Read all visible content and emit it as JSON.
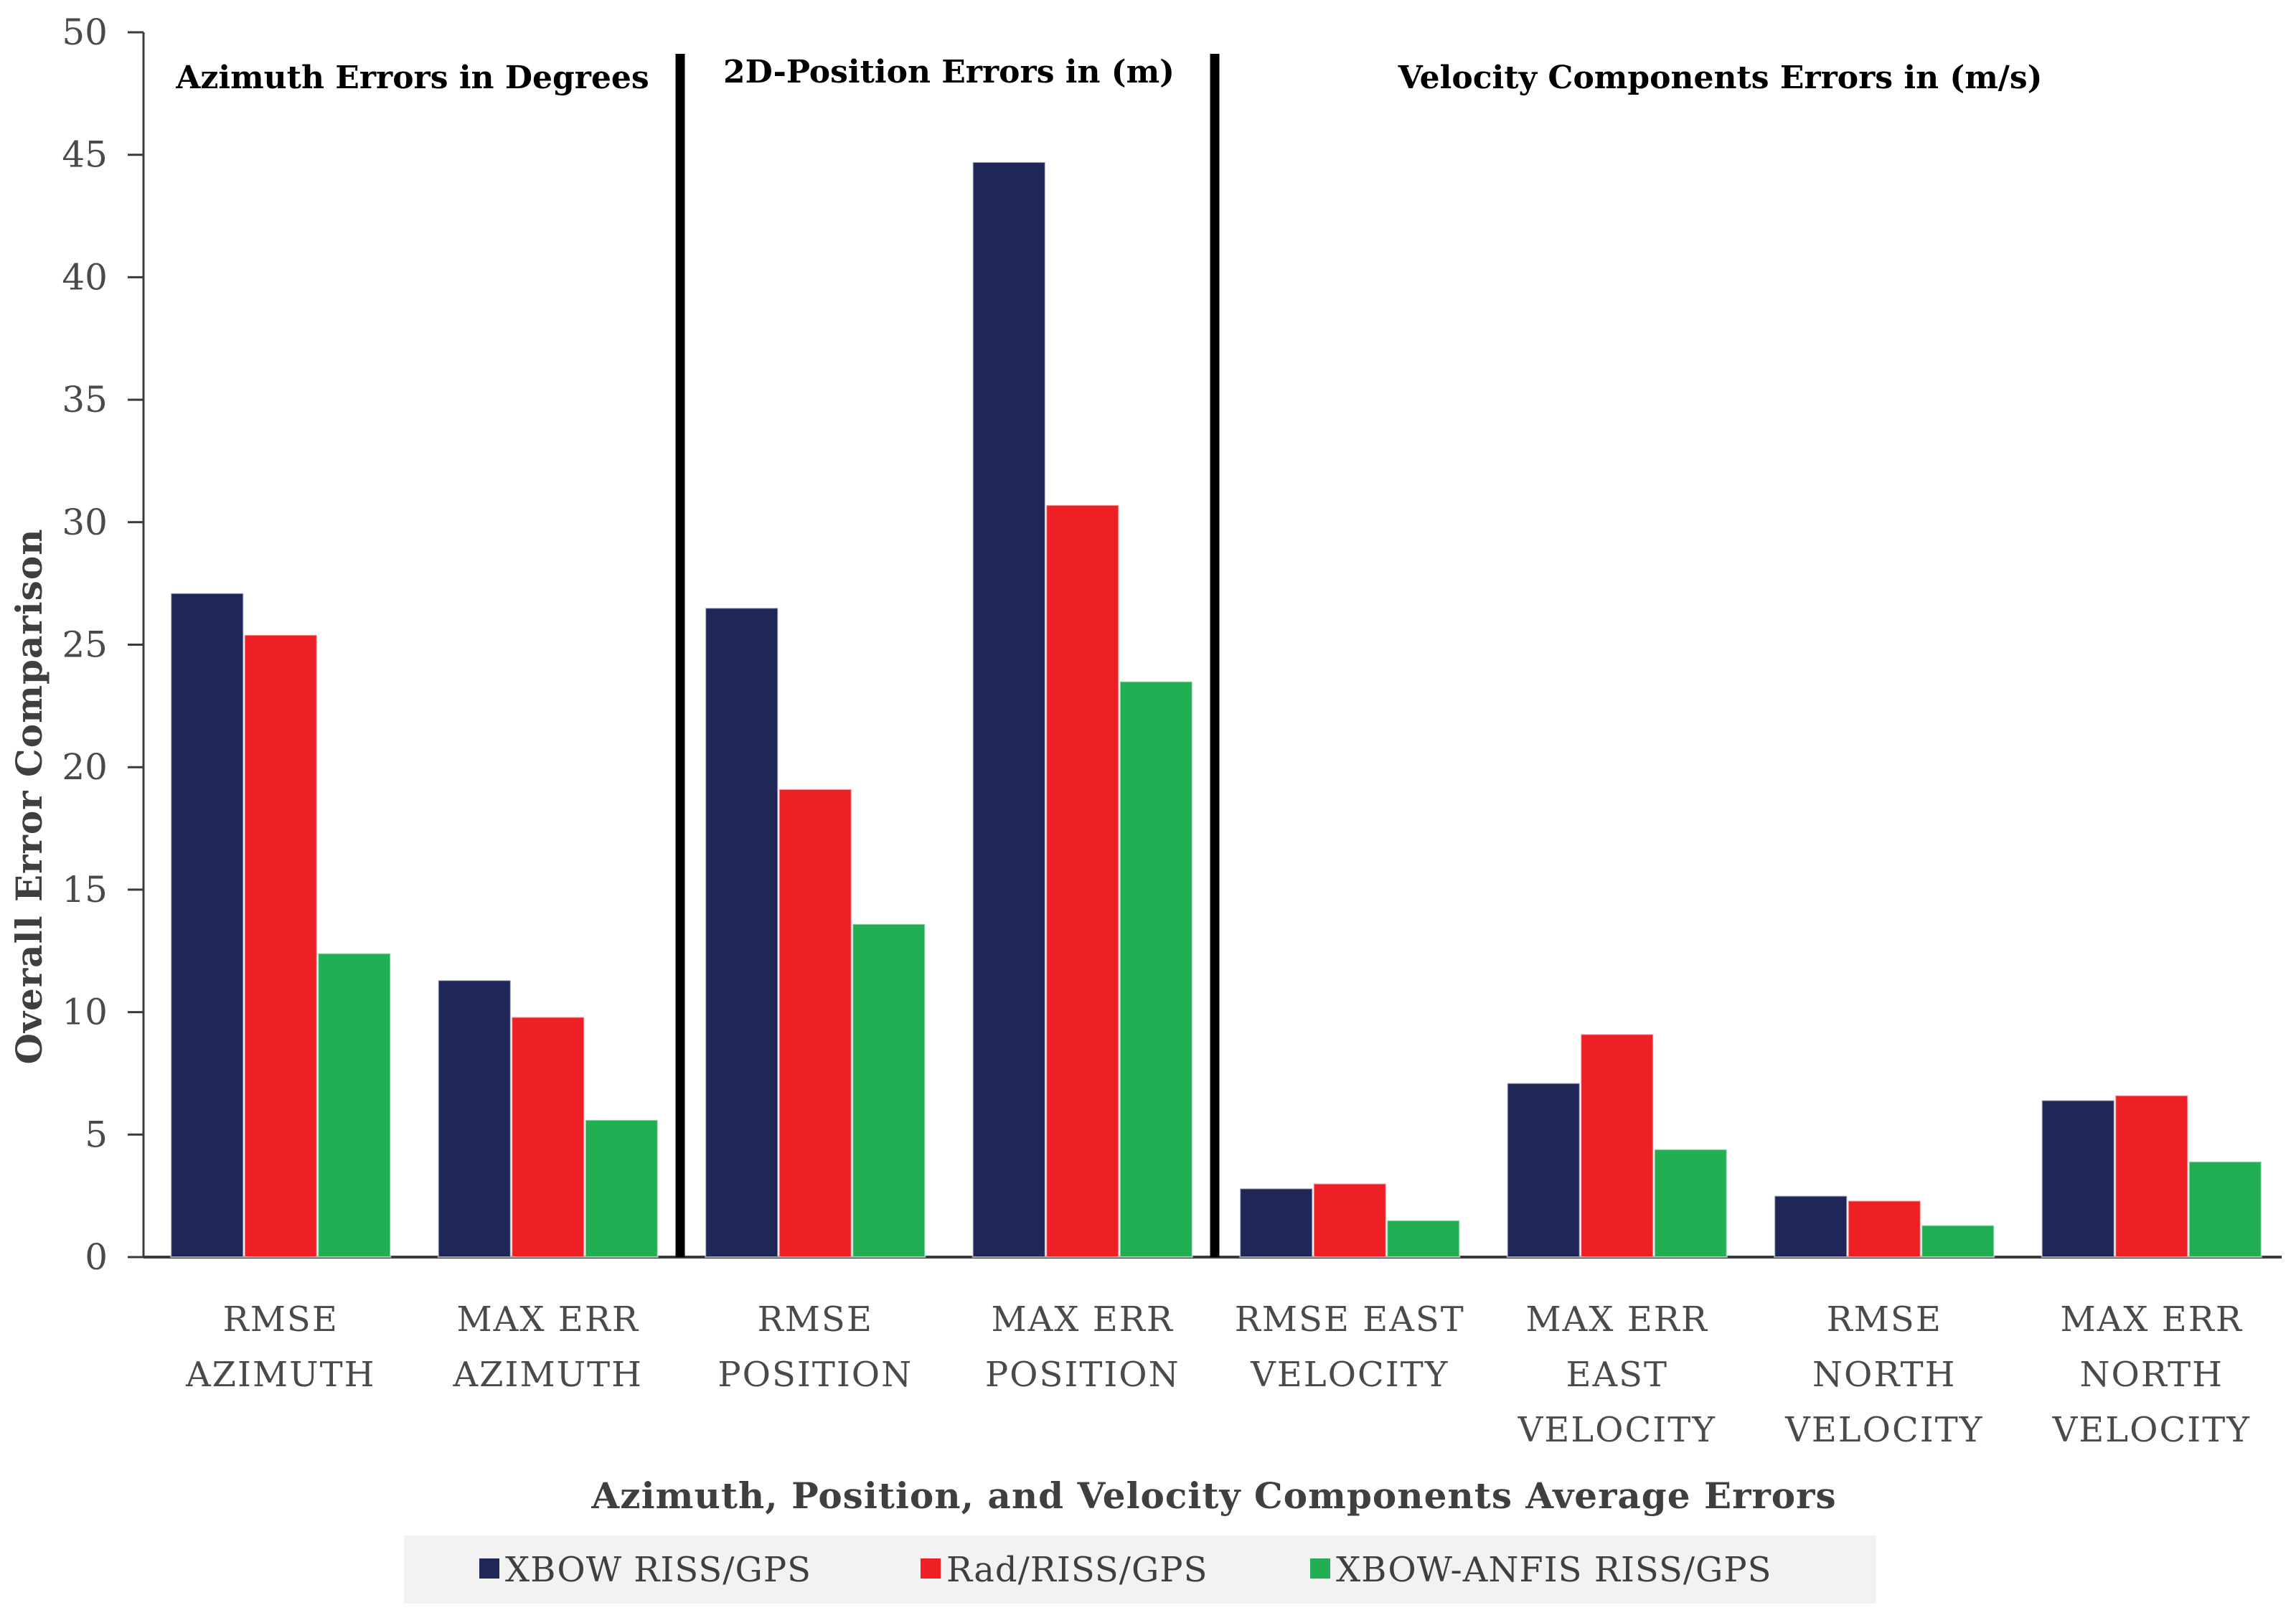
{
  "chart_data": {
    "type": "bar",
    "title": "",
    "xlabel": "Azimuth, Position, and Velocity Components Average Errors",
    "ylabel": "Overall Error Comparison",
    "ylim": [
      0,
      50
    ],
    "yticks": [
      0,
      5,
      10,
      15,
      20,
      25,
      30,
      35,
      40,
      45,
      50
    ],
    "categories": [
      [
        "RMSE",
        "AZIMUTH"
      ],
      [
        "MAX ERR",
        "AZIMUTH"
      ],
      [
        "RMSE",
        "POSITION"
      ],
      [
        "MAX ERR",
        "POSITION"
      ],
      [
        "RMSE EAST",
        "VELOCITY"
      ],
      [
        "MAX ERR",
        "EAST",
        "VELOCITY"
      ],
      [
        "RMSE",
        "NORTH",
        "VELOCITY"
      ],
      [
        "MAX ERR",
        "NORTH",
        "VELOCITY"
      ]
    ],
    "series": [
      {
        "name": "XBOW RISS/GPS",
        "color": "#1f2759",
        "values": [
          27.1,
          11.3,
          26.5,
          44.7,
          2.8,
          7.1,
          2.5,
          6.4
        ]
      },
      {
        "name": "Rad/RISS/GPS",
        "color": "#ee1f25",
        "values": [
          25.4,
          9.8,
          19.1,
          30.7,
          3.0,
          9.1,
          2.3,
          6.6
        ]
      },
      {
        "name": "XBOW-ANFIS RISS/GPS",
        "color": "#22ae52",
        "values": [
          12.4,
          5.6,
          13.6,
          23.5,
          1.5,
          4.4,
          1.3,
          3.9
        ]
      }
    ],
    "sections": [
      {
        "title": "Azimuth Errors in Degrees",
        "category_start": 0,
        "category_end": 1
      },
      {
        "title": "2D-Position Errors in (m)",
        "category_start": 2,
        "category_end": 3
      },
      {
        "title": "Velocity Components Errors in (m/s)",
        "category_start": 4,
        "category_end": 7
      }
    ],
    "grid": false,
    "legend_position": "bottom"
  }
}
